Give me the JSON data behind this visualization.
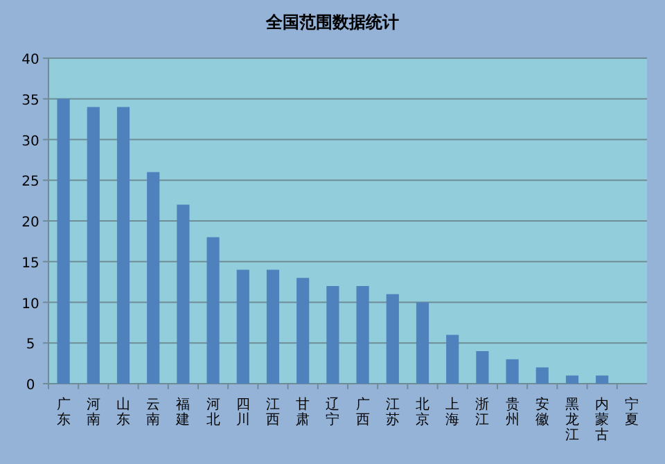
{
  "chart_data": {
    "type": "bar",
    "title": "全国范围数据统计",
    "categories": [
      "广东",
      "河南",
      "山东",
      "云南",
      "福建",
      "河北",
      "四川",
      "江西",
      "甘肃",
      "辽宁",
      "广西",
      "江苏",
      "北京",
      "上海",
      "浙江",
      "贵州",
      "安徽",
      "黑龙江",
      "内蒙古",
      "宁夏"
    ],
    "values": [
      35,
      34,
      34,
      26,
      22,
      18,
      14,
      14,
      13,
      12,
      12,
      11,
      10,
      6,
      4,
      3,
      2,
      1,
      1,
      0
    ],
    "color": "#4f81bd",
    "ylim": [
      0,
      40
    ],
    "yticks": [
      0,
      5,
      10,
      15,
      20,
      25,
      30,
      35,
      40
    ],
    "grid": "y"
  }
}
